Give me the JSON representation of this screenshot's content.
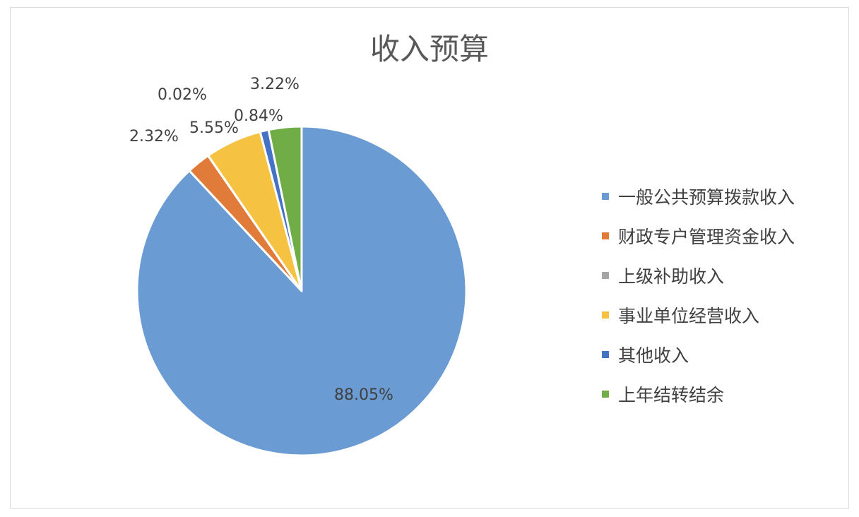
{
  "chart_data": {
    "type": "pie",
    "title": "收入预算",
    "legend_position": "right",
    "slices": [
      {
        "name": "一般公共预算拨款收入",
        "value": 88.05,
        "label": "88.05%",
        "color": "#6a9bd3"
      },
      {
        "name": "财政专户管理资金收入",
        "value": 2.32,
        "label": "2.32%",
        "color": "#e07b39"
      },
      {
        "name": "上级补助收入",
        "value": 0.02,
        "label": "0.02%",
        "color": "#a5a5a5"
      },
      {
        "name": "事业单位经营收入",
        "value": 5.55,
        "label": "5.55%",
        "color": "#f6c242"
      },
      {
        "name": "其他收入",
        "value": 0.84,
        "label": "0.84%",
        "color": "#4472c4"
      },
      {
        "name": "上年结转结余",
        "value": 3.22,
        "label": "3.22%",
        "color": "#70ad47"
      }
    ]
  }
}
